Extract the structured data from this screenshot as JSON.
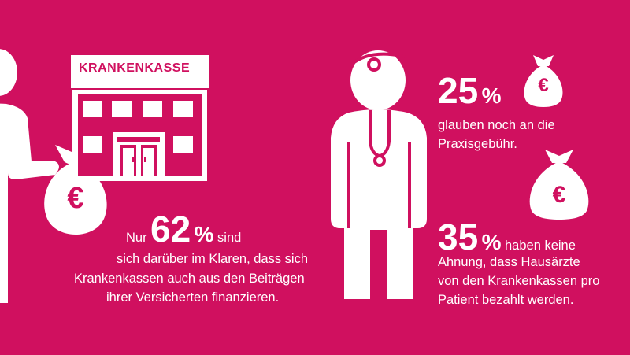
{
  "building": {
    "sign": "KRANKENKASSE"
  },
  "currency_symbol": "€",
  "stat_62": {
    "prefix": "Nur",
    "value": "62",
    "unit": "%",
    "after": "sind",
    "line2": "sich darüber im Klaren, dass sich",
    "line3": "Krankenkassen auch aus den Beiträgen",
    "line4": "ihrer Versicherten finanzieren."
  },
  "stat_25": {
    "value": "25",
    "unit": "%",
    "line1": "glauben noch an die",
    "line2": "Praxisgebühr."
  },
  "stat_35": {
    "value": "35",
    "unit": "%",
    "after": "haben keine",
    "line2": "Ahnung, dass Hausärzte",
    "line3": "von den Krankenkassen pro",
    "line4": "Patient bezahlt werden."
  },
  "colors": {
    "background": "#d0105f",
    "foreground": "#ffffff"
  }
}
